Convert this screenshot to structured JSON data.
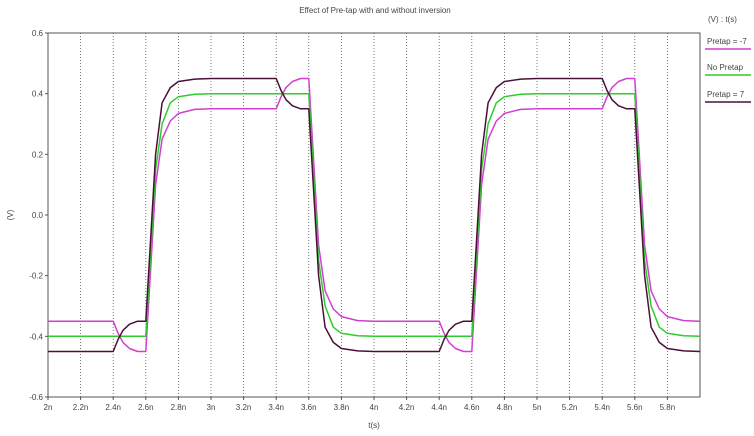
{
  "chart_data": {
    "type": "line",
    "title": "Effect of Pre-tap with and without inversion",
    "xlabel": "t(s)",
    "ylabel": "(V)",
    "legend_title": "(V) : t(s)",
    "legend_position": "right",
    "grid": "vertical-dotted",
    "xlim": [
      2.0,
      6.0
    ],
    "ylim": [
      -0.6,
      0.6
    ],
    "x_ticks": [
      2.0,
      2.2,
      2.4,
      2.6,
      2.8,
      3.0,
      3.2,
      3.4,
      3.6,
      3.8,
      4.0,
      4.2,
      4.4,
      4.6,
      4.8,
      5.0,
      5.2,
      5.4,
      5.6,
      5.8
    ],
    "x_tick_labels": [
      "2n",
      "2.2n",
      "2.4n",
      "2.6n",
      "2.8n",
      "3n",
      "3.2n",
      "3.4n",
      "3.6n",
      "3.8n",
      "4n",
      "4.2n",
      "4.4n",
      "4.6n",
      "4.8n",
      "5n",
      "5.2n",
      "5.4n",
      "5.6n",
      "5.8n"
    ],
    "y_ticks": [
      -0.6,
      -0.4,
      -0.2,
      0.0,
      0.2,
      0.4,
      0.6
    ],
    "y_tick_labels": [
      "-0.6",
      "-0.4",
      "-0.2",
      "0.0",
      "0.2",
      "0.4",
      "0.6"
    ],
    "series": [
      {
        "name": "Pretap = -7",
        "color": "#d13fd1",
        "x": [
          2.0,
          2.4,
          2.43,
          2.46,
          2.5,
          2.55,
          2.6,
          2.66,
          2.7,
          2.75,
          2.8,
          2.9,
          3.0,
          3.4,
          3.43,
          3.46,
          3.5,
          3.55,
          3.6,
          3.66,
          3.7,
          3.75,
          3.8,
          3.9,
          4.0,
          4.4,
          4.43,
          4.46,
          4.5,
          4.55,
          4.6,
          4.66,
          4.7,
          4.75,
          4.8,
          4.9,
          5.0,
          5.4,
          5.43,
          5.46,
          5.5,
          5.55,
          5.6,
          5.66,
          5.7,
          5.75,
          5.8,
          5.9,
          6.0
        ],
        "y": [
          -0.35,
          -0.35,
          -0.39,
          -0.42,
          -0.44,
          -0.45,
          -0.45,
          0.1,
          0.25,
          0.31,
          0.335,
          0.348,
          0.35,
          0.35,
          0.39,
          0.42,
          0.44,
          0.45,
          0.45,
          -0.1,
          -0.25,
          -0.31,
          -0.335,
          -0.348,
          -0.35,
          -0.35,
          -0.39,
          -0.42,
          -0.44,
          -0.45,
          -0.45,
          0.1,
          0.25,
          0.31,
          0.335,
          0.348,
          0.35,
          0.35,
          0.39,
          0.42,
          0.44,
          0.45,
          0.45,
          -0.1,
          -0.25,
          -0.31,
          -0.335,
          -0.348,
          -0.35
        ]
      },
      {
        "name": "No Pretap",
        "color": "#2ecc2e",
        "x": [
          2.0,
          2.6,
          2.66,
          2.7,
          2.75,
          2.8,
          2.9,
          3.0,
          3.6,
          3.66,
          3.7,
          3.75,
          3.8,
          3.9,
          4.0,
          4.6,
          4.66,
          4.7,
          4.75,
          4.8,
          4.9,
          5.0,
          5.6,
          5.66,
          5.7,
          5.75,
          5.8,
          5.9,
          6.0
        ],
        "y": [
          -0.4,
          -0.4,
          0.15,
          0.3,
          0.37,
          0.39,
          0.398,
          0.4,
          0.4,
          -0.15,
          -0.3,
          -0.37,
          -0.39,
          -0.398,
          -0.4,
          -0.4,
          0.15,
          0.3,
          0.37,
          0.39,
          0.398,
          0.4,
          0.4,
          -0.15,
          -0.3,
          -0.37,
          -0.39,
          -0.398,
          -0.4
        ]
      },
      {
        "name": "Pretap = 7",
        "color": "#4a1038",
        "x": [
          2.0,
          2.4,
          2.43,
          2.46,
          2.5,
          2.55,
          2.6,
          2.66,
          2.7,
          2.75,
          2.8,
          2.9,
          3.0,
          3.4,
          3.43,
          3.46,
          3.5,
          3.55,
          3.6,
          3.66,
          3.7,
          3.75,
          3.8,
          3.9,
          4.0,
          4.4,
          4.43,
          4.46,
          4.5,
          4.55,
          4.6,
          4.66,
          4.7,
          4.75,
          4.8,
          4.9,
          5.0,
          5.4,
          5.43,
          5.46,
          5.5,
          5.55,
          5.6,
          5.66,
          5.7,
          5.75,
          5.8,
          5.9,
          6.0
        ],
        "y": [
          -0.45,
          -0.45,
          -0.41,
          -0.38,
          -0.36,
          -0.35,
          -0.35,
          0.2,
          0.37,
          0.42,
          0.44,
          0.448,
          0.45,
          0.45,
          0.41,
          0.38,
          0.36,
          0.35,
          0.35,
          -0.2,
          -0.37,
          -0.42,
          -0.44,
          -0.448,
          -0.45,
          -0.45,
          -0.41,
          -0.38,
          -0.36,
          -0.35,
          -0.35,
          0.2,
          0.37,
          0.42,
          0.44,
          0.448,
          0.45,
          0.45,
          0.41,
          0.38,
          0.36,
          0.35,
          0.35,
          -0.2,
          -0.37,
          -0.42,
          -0.44,
          -0.448,
          -0.45
        ]
      }
    ]
  }
}
